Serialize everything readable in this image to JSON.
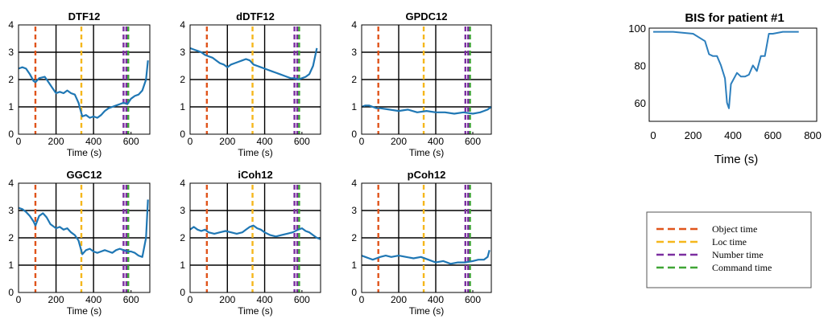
{
  "chart_data": [
    {
      "type": "line",
      "title": "DTF12",
      "xlabel": "Time (s)",
      "ylabel": "",
      "xlim": [
        0,
        700
      ],
      "ylim": [
        0,
        4
      ],
      "xticks": [
        0,
        200,
        400,
        600
      ],
      "yticks": [
        0,
        1,
        2,
        3,
        4
      ],
      "grid_x": [
        200,
        400
      ],
      "grid_y": [
        1,
        2,
        3
      ],
      "events": [
        {
          "x": 90,
          "color": "#e0541b"
        },
        {
          "x": 335,
          "color": "#f5b71c"
        },
        {
          "x": 560,
          "color": "#7b2fa0"
        },
        {
          "x": 575,
          "color": "#7b2fa0"
        },
        {
          "x": 585,
          "color": "#3fa535"
        }
      ],
      "series": [
        {
          "color": "#1f77b4",
          "x": [
            0,
            20,
            40,
            60,
            80,
            90,
            110,
            140,
            160,
            180,
            200,
            220,
            240,
            260,
            280,
            300,
            320,
            330,
            340,
            360,
            380,
            400,
            420,
            440,
            460,
            480,
            500,
            520,
            540,
            560,
            580,
            600,
            620,
            640,
            660,
            680,
            690
          ],
          "y": [
            2.4,
            2.45,
            2.4,
            2.2,
            1.95,
            1.9,
            2.05,
            2.1,
            1.9,
            1.7,
            1.5,
            1.55,
            1.5,
            1.6,
            1.5,
            1.45,
            1.15,
            0.9,
            0.65,
            0.7,
            0.6,
            0.65,
            0.6,
            0.7,
            0.85,
            0.95,
            1.0,
            1.05,
            1.1,
            1.15,
            1.1,
            1.3,
            1.4,
            1.45,
            1.6,
            2.0,
            2.7
          ]
        }
      ]
    },
    {
      "type": "line",
      "title": "dDTF12",
      "xlabel": "Time (s)",
      "ylabel": "",
      "xlim": [
        0,
        700
      ],
      "ylim": [
        0,
        4
      ],
      "xticks": [
        0,
        200,
        400,
        600
      ],
      "yticks": [
        0,
        1,
        2,
        3,
        4
      ],
      "grid_x": [
        200,
        400
      ],
      "grid_y": [
        1,
        2,
        3
      ],
      "events": [
        {
          "x": 90,
          "color": "#e0541b"
        },
        {
          "x": 335,
          "color": "#f5b71c"
        },
        {
          "x": 560,
          "color": "#7b2fa0"
        },
        {
          "x": 575,
          "color": "#7b2fa0"
        },
        {
          "x": 585,
          "color": "#3fa535"
        }
      ],
      "series": [
        {
          "color": "#1f77b4",
          "x": [
            0,
            20,
            40,
            60,
            80,
            100,
            120,
            140,
            160,
            180,
            200,
            220,
            240,
            260,
            280,
            300,
            320,
            340,
            360,
            380,
            400,
            420,
            440,
            460,
            480,
            500,
            520,
            540,
            560,
            580,
            600,
            620,
            640,
            660,
            680
          ],
          "y": [
            3.15,
            3.1,
            3.05,
            3.0,
            2.9,
            2.85,
            2.8,
            2.7,
            2.6,
            2.55,
            2.45,
            2.55,
            2.6,
            2.65,
            2.7,
            2.75,
            2.7,
            2.55,
            2.5,
            2.45,
            2.4,
            2.35,
            2.3,
            2.25,
            2.2,
            2.15,
            2.1,
            2.05,
            2.05,
            2.0,
            2.05,
            2.1,
            2.2,
            2.5,
            3.15
          ]
        }
      ]
    },
    {
      "type": "line",
      "title": "GPDC12",
      "xlabel": "Time (s)",
      "ylabel": "",
      "xlim": [
        0,
        700
      ],
      "ylim": [
        0,
        4
      ],
      "xticks": [
        0,
        200,
        400,
        600
      ],
      "yticks": [
        0,
        1,
        2,
        3,
        4
      ],
      "grid_x": [
        200,
        400
      ],
      "grid_y": [
        1,
        2,
        3
      ],
      "events": [
        {
          "x": 90,
          "color": "#e0541b"
        },
        {
          "x": 335,
          "color": "#f5b71c"
        },
        {
          "x": 560,
          "color": "#7b2fa0"
        },
        {
          "x": 575,
          "color": "#7b2fa0"
        },
        {
          "x": 585,
          "color": "#3fa535"
        }
      ],
      "series": [
        {
          "color": "#1f77b4",
          "x": [
            0,
            20,
            40,
            60,
            80,
            100,
            150,
            200,
            250,
            300,
            350,
            400,
            450,
            500,
            550,
            600,
            640,
            660,
            680,
            700
          ],
          "y": [
            1.0,
            1.05,
            1.05,
            1.0,
            0.95,
            0.95,
            0.9,
            0.85,
            0.9,
            0.8,
            0.85,
            0.8,
            0.8,
            0.75,
            0.8,
            0.75,
            0.8,
            0.85,
            0.9,
            1.0
          ]
        }
      ]
    },
    {
      "type": "line",
      "title": "GGC12",
      "xlabel": "Time (s)",
      "ylabel": "",
      "xlim": [
        0,
        700
      ],
      "ylim": [
        0,
        4
      ],
      "xticks": [
        0,
        200,
        400,
        600
      ],
      "yticks": [
        0,
        1,
        2,
        3,
        4
      ],
      "grid_x": [
        200,
        400
      ],
      "grid_y": [
        1,
        2,
        3
      ],
      "events": [
        {
          "x": 90,
          "color": "#e0541b"
        },
        {
          "x": 335,
          "color": "#f5b71c"
        },
        {
          "x": 560,
          "color": "#7b2fa0"
        },
        {
          "x": 575,
          "color": "#7b2fa0"
        },
        {
          "x": 585,
          "color": "#3fa535"
        }
      ],
      "series": [
        {
          "color": "#1f77b4",
          "x": [
            0,
            20,
            40,
            60,
            80,
            90,
            110,
            130,
            150,
            170,
            200,
            220,
            240,
            260,
            280,
            300,
            320,
            340,
            360,
            380,
            400,
            420,
            440,
            460,
            480,
            500,
            520,
            540,
            560,
            580,
            600,
            620,
            640,
            660,
            680,
            690
          ],
          "y": [
            3.1,
            3.05,
            2.95,
            2.8,
            2.6,
            2.45,
            2.8,
            2.9,
            2.75,
            2.5,
            2.35,
            2.4,
            2.3,
            2.35,
            2.2,
            2.1,
            1.9,
            1.4,
            1.55,
            1.6,
            1.5,
            1.45,
            1.5,
            1.55,
            1.5,
            1.45,
            1.55,
            1.6,
            1.55,
            1.5,
            1.5,
            1.45,
            1.35,
            1.3,
            2.0,
            3.4
          ]
        }
      ]
    },
    {
      "type": "line",
      "title": "iCoh12",
      "xlabel": "Time (s)",
      "ylabel": "",
      "xlim": [
        0,
        700
      ],
      "ylim": [
        0,
        4
      ],
      "xticks": [
        0,
        200,
        400,
        600
      ],
      "yticks": [
        0,
        1,
        2,
        3,
        4
      ],
      "grid_x": [
        200,
        400
      ],
      "grid_y": [
        1,
        2,
        3
      ],
      "events": [
        {
          "x": 90,
          "color": "#e0541b"
        },
        {
          "x": 335,
          "color": "#f5b71c"
        },
        {
          "x": 560,
          "color": "#7b2fa0"
        },
        {
          "x": 575,
          "color": "#7b2fa0"
        },
        {
          "x": 585,
          "color": "#3fa535"
        }
      ],
      "series": [
        {
          "color": "#1f77b4",
          "x": [
            0,
            20,
            40,
            60,
            80,
            100,
            130,
            160,
            190,
            220,
            250,
            280,
            300,
            320,
            340,
            360,
            380,
            400,
            430,
            460,
            490,
            520,
            550,
            580,
            600,
            620,
            640,
            660,
            680,
            700
          ],
          "y": [
            2.3,
            2.4,
            2.3,
            2.25,
            2.3,
            2.2,
            2.15,
            2.2,
            2.25,
            2.2,
            2.15,
            2.2,
            2.3,
            2.4,
            2.45,
            2.35,
            2.3,
            2.2,
            2.1,
            2.05,
            2.1,
            2.15,
            2.2,
            2.3,
            2.35,
            2.25,
            2.2,
            2.1,
            2.0,
            1.95
          ]
        }
      ]
    },
    {
      "type": "line",
      "title": "pCoh12",
      "xlabel": "Time (s)",
      "ylabel": "",
      "xlim": [
        0,
        700
      ],
      "ylim": [
        0,
        4
      ],
      "xticks": [
        0,
        200,
        400,
        600
      ],
      "yticks": [
        0,
        1,
        2,
        3,
        4
      ],
      "grid_x": [
        200,
        400
      ],
      "grid_y": [
        1,
        2,
        3
      ],
      "events": [
        {
          "x": 90,
          "color": "#e0541b"
        },
        {
          "x": 335,
          "color": "#f5b71c"
        },
        {
          "x": 560,
          "color": "#7b2fa0"
        },
        {
          "x": 575,
          "color": "#7b2fa0"
        },
        {
          "x": 585,
          "color": "#3fa535"
        }
      ],
      "series": [
        {
          "color": "#1f77b4",
          "x": [
            0,
            20,
            40,
            60,
            80,
            100,
            130,
            160,
            200,
            240,
            280,
            320,
            360,
            400,
            440,
            480,
            520,
            560,
            600,
            630,
            660,
            680,
            690
          ],
          "y": [
            1.35,
            1.3,
            1.25,
            1.2,
            1.25,
            1.3,
            1.35,
            1.3,
            1.35,
            1.3,
            1.25,
            1.3,
            1.2,
            1.1,
            1.15,
            1.05,
            1.1,
            1.1,
            1.15,
            1.2,
            1.2,
            1.3,
            1.55
          ]
        }
      ]
    },
    {
      "type": "line",
      "title": "BIS for patient #1",
      "xlabel": "Time (s)",
      "ylabel": "",
      "xlim": [
        -20,
        820
      ],
      "ylim": [
        50,
        100
      ],
      "xticks": [
        0,
        200,
        400,
        600,
        800
      ],
      "yticks": [
        60,
        80,
        100
      ],
      "series": [
        {
          "color": "#2d7fbd",
          "x": [
            0,
            100,
            200,
            260,
            280,
            300,
            320,
            340,
            360,
            370,
            380,
            390,
            400,
            420,
            440,
            460,
            480,
            500,
            520,
            540,
            560,
            580,
            600,
            650,
            700,
            730
          ],
          "y": [
            98,
            98,
            97,
            93,
            86,
            85,
            85,
            80,
            73,
            60,
            57,
            70,
            72,
            76,
            74,
            74,
            75,
            80,
            77,
            85,
            85,
            97,
            97,
            98,
            98,
            98
          ]
        }
      ]
    }
  ],
  "legend": {
    "items": [
      {
        "label": "Object time",
        "color": "#e0541b"
      },
      {
        "label": "Loc  time",
        "color": "#f5b71c"
      },
      {
        "label": "Number time",
        "color": "#7b2fa0"
      },
      {
        "label": "Command time",
        "color": "#3fa535"
      }
    ]
  }
}
